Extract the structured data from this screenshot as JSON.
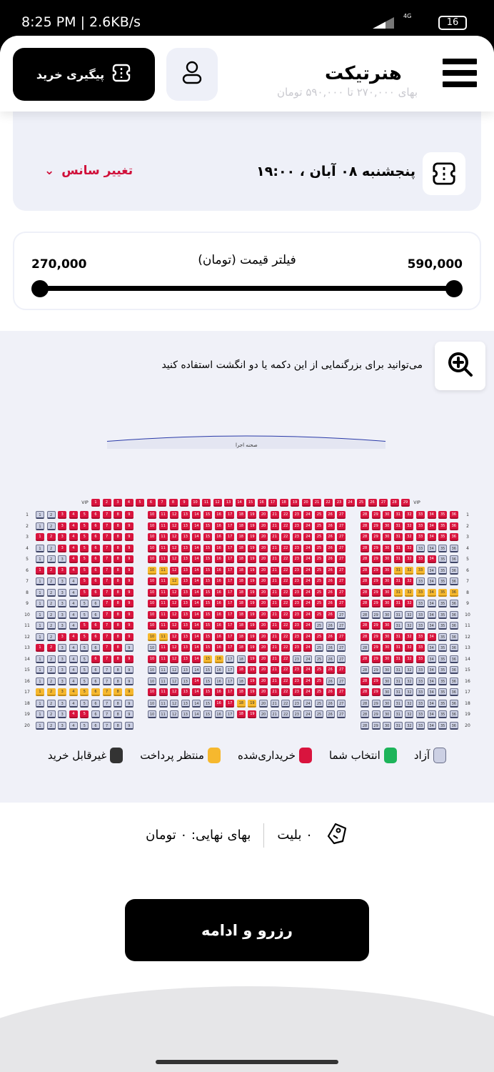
{
  "status_bar": {
    "time": "8:25 PM | 2.6KB/s",
    "network": "4G",
    "battery": "16"
  },
  "header": {
    "logo": "هنرتیکت",
    "track_label": "پیگیری خرید",
    "ghost_text": "بهای ۲۷۰,۰۰۰ تا ۵۹۰,۰۰۰ تومان"
  },
  "session": {
    "datetime": "پنجشنبه ۰۸ آبان ، ۱۹:۰۰",
    "change_label": "تغییر سانس"
  },
  "price_filter": {
    "label": "فیلتر قیمت (تومان)",
    "min": "270,000",
    "max": "590,000",
    "range_fraction": [
      0,
      1
    ]
  },
  "seat_map": {
    "hint": "می‌توانید برای بزرگنمایی از این دکمه یا دو انگشت استفاده کنید",
    "stage_label": "صحنه اجرا",
    "vip_label": "VIP",
    "vip_seats": {
      "from": 1,
      "to": 29,
      "status": "rrrrrrrrrrrrrrrrrrrrrrrrrrrrr"
    },
    "status_key": {
      "r": "sold",
      "f": "free",
      "y": "pending"
    },
    "blocks": [
      {
        "from": 1,
        "to": 9
      },
      {
        "from": 10,
        "to": 27
      },
      {
        "from": 28,
        "to": 36
      }
    ],
    "rows": [
      {
        "label": "1",
        "left": "ffrrrrrrr",
        "mid": "rrrrrrrrrrrrrrrrrr",
        "right": "rrrrrrrrr"
      },
      {
        "label": "2",
        "left": "ffrrrrrrr",
        "mid": "rrrrrrrrrrrrrrrrrr",
        "right": "rrrrrrrrr"
      },
      {
        "label": "3",
        "left": "rrrrrrrrr",
        "mid": "rrrrrrrrrrrrrrrrrr",
        "right": "rrrrrrrrr"
      },
      {
        "label": "4",
        "left": "ffrrrrrrr",
        "mid": "rrrrrrrrrrrrrrrrrr",
        "right": "rrrrrffff"
      },
      {
        "label": "5",
        "left": "fffrrrrrr",
        "mid": "rrrrrrrrrrrrrrrrrr",
        "right": "rrrrrrrff"
      },
      {
        "label": "6",
        "left": "rrrrrrrrr",
        "mid": "yyrrrrrrrrrrrrrrrr",
        "right": "rrryyyfff"
      },
      {
        "label": "7",
        "left": "ffffrrrrr",
        "mid": "rryrrrrrrrrrrrrrrr",
        "right": "rrrrrffff"
      },
      {
        "label": "8",
        "left": "ffffrrrrr",
        "mid": "rrrrrrrrrrrrrrrrrr",
        "right": "rrryyyyyy"
      },
      {
        "label": "9",
        "left": "ffffffrrr",
        "mid": "rrrrrrrrrrrrrrrrrr",
        "right": "rrrrrffff"
      },
      {
        "label": "10",
        "left": "ffffffrrr",
        "mid": "rrrrrrrrrrrrrrrrrf",
        "right": "fffffffff"
      },
      {
        "label": "11",
        "left": "ffffrrrrr",
        "mid": "rrrrrrrrrrrrrrrfff",
        "right": "rrrffffff"
      },
      {
        "label": "12",
        "left": "ffrrrrrrr",
        "mid": "yyrrrrrrrrrrrrrrrr",
        "right": "rrrrrrrff"
      },
      {
        "label": "13",
        "left": "rrffffrrf",
        "mid": "frrrrrrrrrrrrrrfff",
        "right": "frrrrrfff"
      },
      {
        "label": "14",
        "left": "fffffrrrr",
        "mid": "rrrrryyffrrrrfffff",
        "right": "rrrrrrfff"
      },
      {
        "label": "15",
        "left": "fffffffff",
        "mid": "ffffffffrrrrrrrrrr",
        "right": "fffffffff"
      },
      {
        "label": "16",
        "left": "fffffffff",
        "mid": "ffffrffffrrrrrrrff",
        "right": "rrfffffff"
      },
      {
        "label": "17",
        "left": "yyyyyyyyy",
        "mid": "rrrrrrrrrrrrrrrrrr",
        "right": "rrfffffff"
      },
      {
        "label": "18",
        "left": "fffffffff",
        "mid": "ffffffrryyffffffff",
        "right": "fffffffff"
      },
      {
        "label": "19",
        "left": "fffrrffff",
        "mid": "ffffffffrrffffffff",
        "right": "fffffffff"
      },
      {
        "label": "20",
        "left": "fffffffff",
        "mid": "",
        "right": "fffffffff"
      }
    ]
  },
  "legend": [
    {
      "label": "آزاد",
      "color": "#ccd0e4"
    },
    {
      "label": "انتخاب شما",
      "color": "#1db45a"
    },
    {
      "label": "خریداری‌شده",
      "color": "#d9143e"
    },
    {
      "label": "منتظر پرداخت",
      "color": "#f6b82e"
    },
    {
      "label": "غیرقابل خرید",
      "color": "#333333"
    }
  ],
  "summary": {
    "tickets": "۰ بلیت",
    "total": "بهای نهایی: ۰ تومان"
  },
  "cta_label": "رزرو و ادامه"
}
